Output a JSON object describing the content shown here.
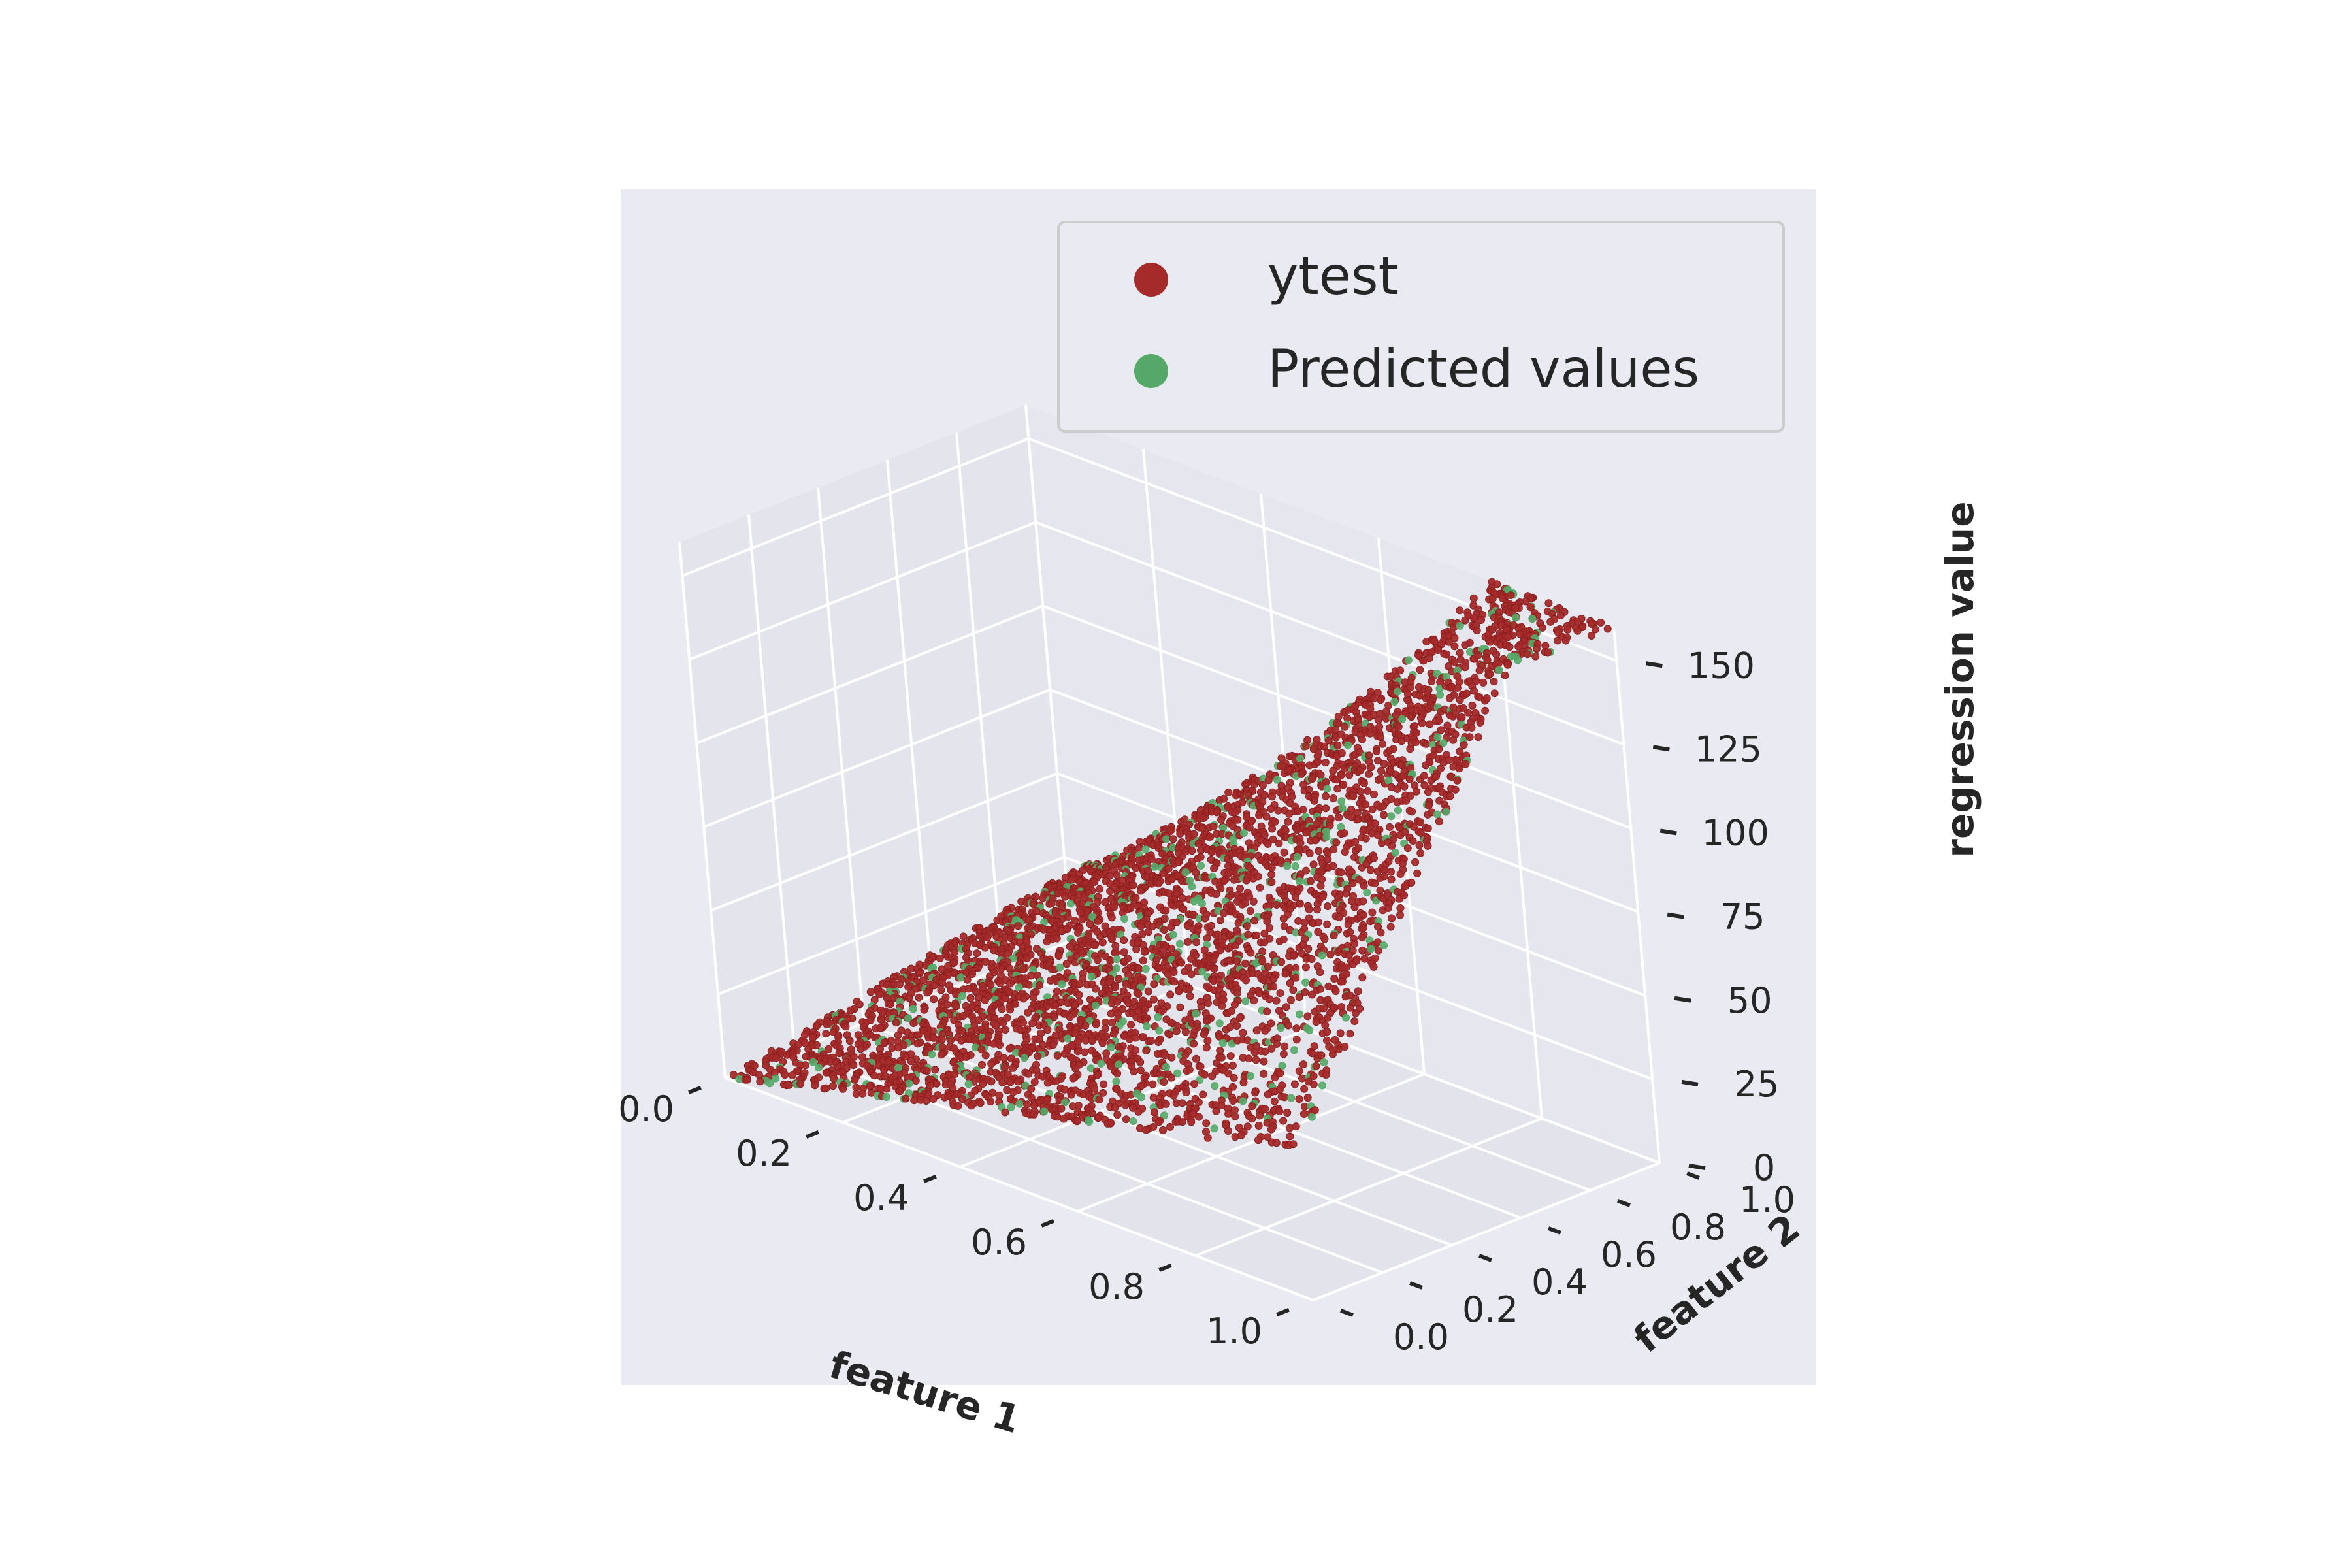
{
  "chart_data": {
    "type": "scatter",
    "projection": "3d",
    "title": "",
    "xlabel": "feature 1",
    "ylabel": "feature 2",
    "zlabel": "regression value",
    "xlim": [
      0,
      1
    ],
    "ylim": [
      0,
      1
    ],
    "zlim": [
      0,
      160
    ],
    "xticks": [
      "0.0",
      "0.2",
      "0.4",
      "0.6",
      "0.8",
      "1.0"
    ],
    "yticks": [
      "0.0",
      "0.2",
      "0.4",
      "0.6",
      "0.8",
      "1.0"
    ],
    "zticks": [
      "0",
      "25",
      "50",
      "75",
      "100",
      "125",
      "150"
    ],
    "grid": true,
    "legend_position": "upper-right",
    "series": [
      {
        "name": "ytest",
        "color": "#a52a2a",
        "surface_samples": [
          {
            "x": 0.0,
            "y": 0.0,
            "z": 0
          },
          {
            "x": 1.0,
            "y": 0.0,
            "z": 45
          },
          {
            "x": 0.0,
            "y": 1.0,
            "z": 20
          },
          {
            "x": 1.0,
            "y": 1.0,
            "z": 150
          },
          {
            "x": 0.5,
            "y": 0.5,
            "z": 45
          }
        ]
      },
      {
        "name": "Predicted values",
        "color": "#55a868",
        "surface_samples": [
          {
            "x": 0.0,
            "y": 0.0,
            "z": 0
          },
          {
            "x": 1.0,
            "y": 0.0,
            "z": 45
          },
          {
            "x": 0.0,
            "y": 1.0,
            "z": 20
          },
          {
            "x": 1.0,
            "y": 1.0,
            "z": 150
          },
          {
            "x": 0.5,
            "y": 0.5,
            "z": 45
          }
        ]
      }
    ]
  }
}
